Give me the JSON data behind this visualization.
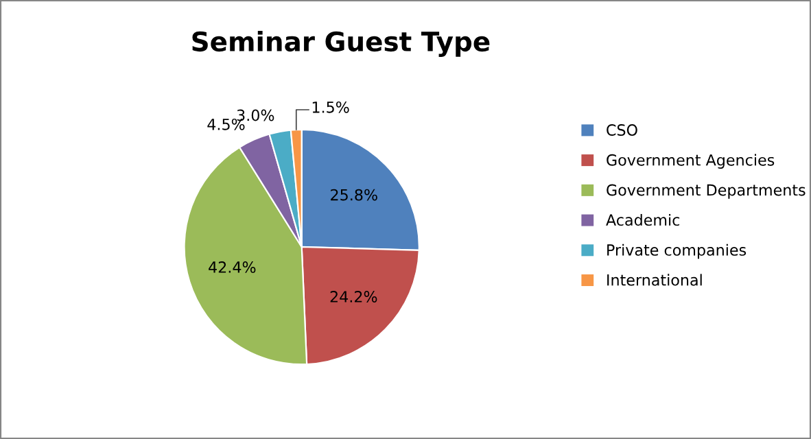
{
  "chart_data": {
    "type": "pie",
    "title": "Seminar Guest Type",
    "categories": [
      "CSO",
      "Government Agencies",
      "Government Departments",
      "Academic",
      "Private companies",
      "International"
    ],
    "values": [
      25.8,
      24.2,
      42.4,
      4.5,
      3.0,
      1.5
    ],
    "value_labels": [
      "25.8%",
      "24.2%",
      "42.4%",
      "4.5%",
      "3.0%",
      "1.5%"
    ],
    "colors": [
      "#4f81bd",
      "#c0504d",
      "#9bbb59",
      "#8064a2",
      "#4bacc6",
      "#f79646"
    ],
    "legend": "right"
  }
}
